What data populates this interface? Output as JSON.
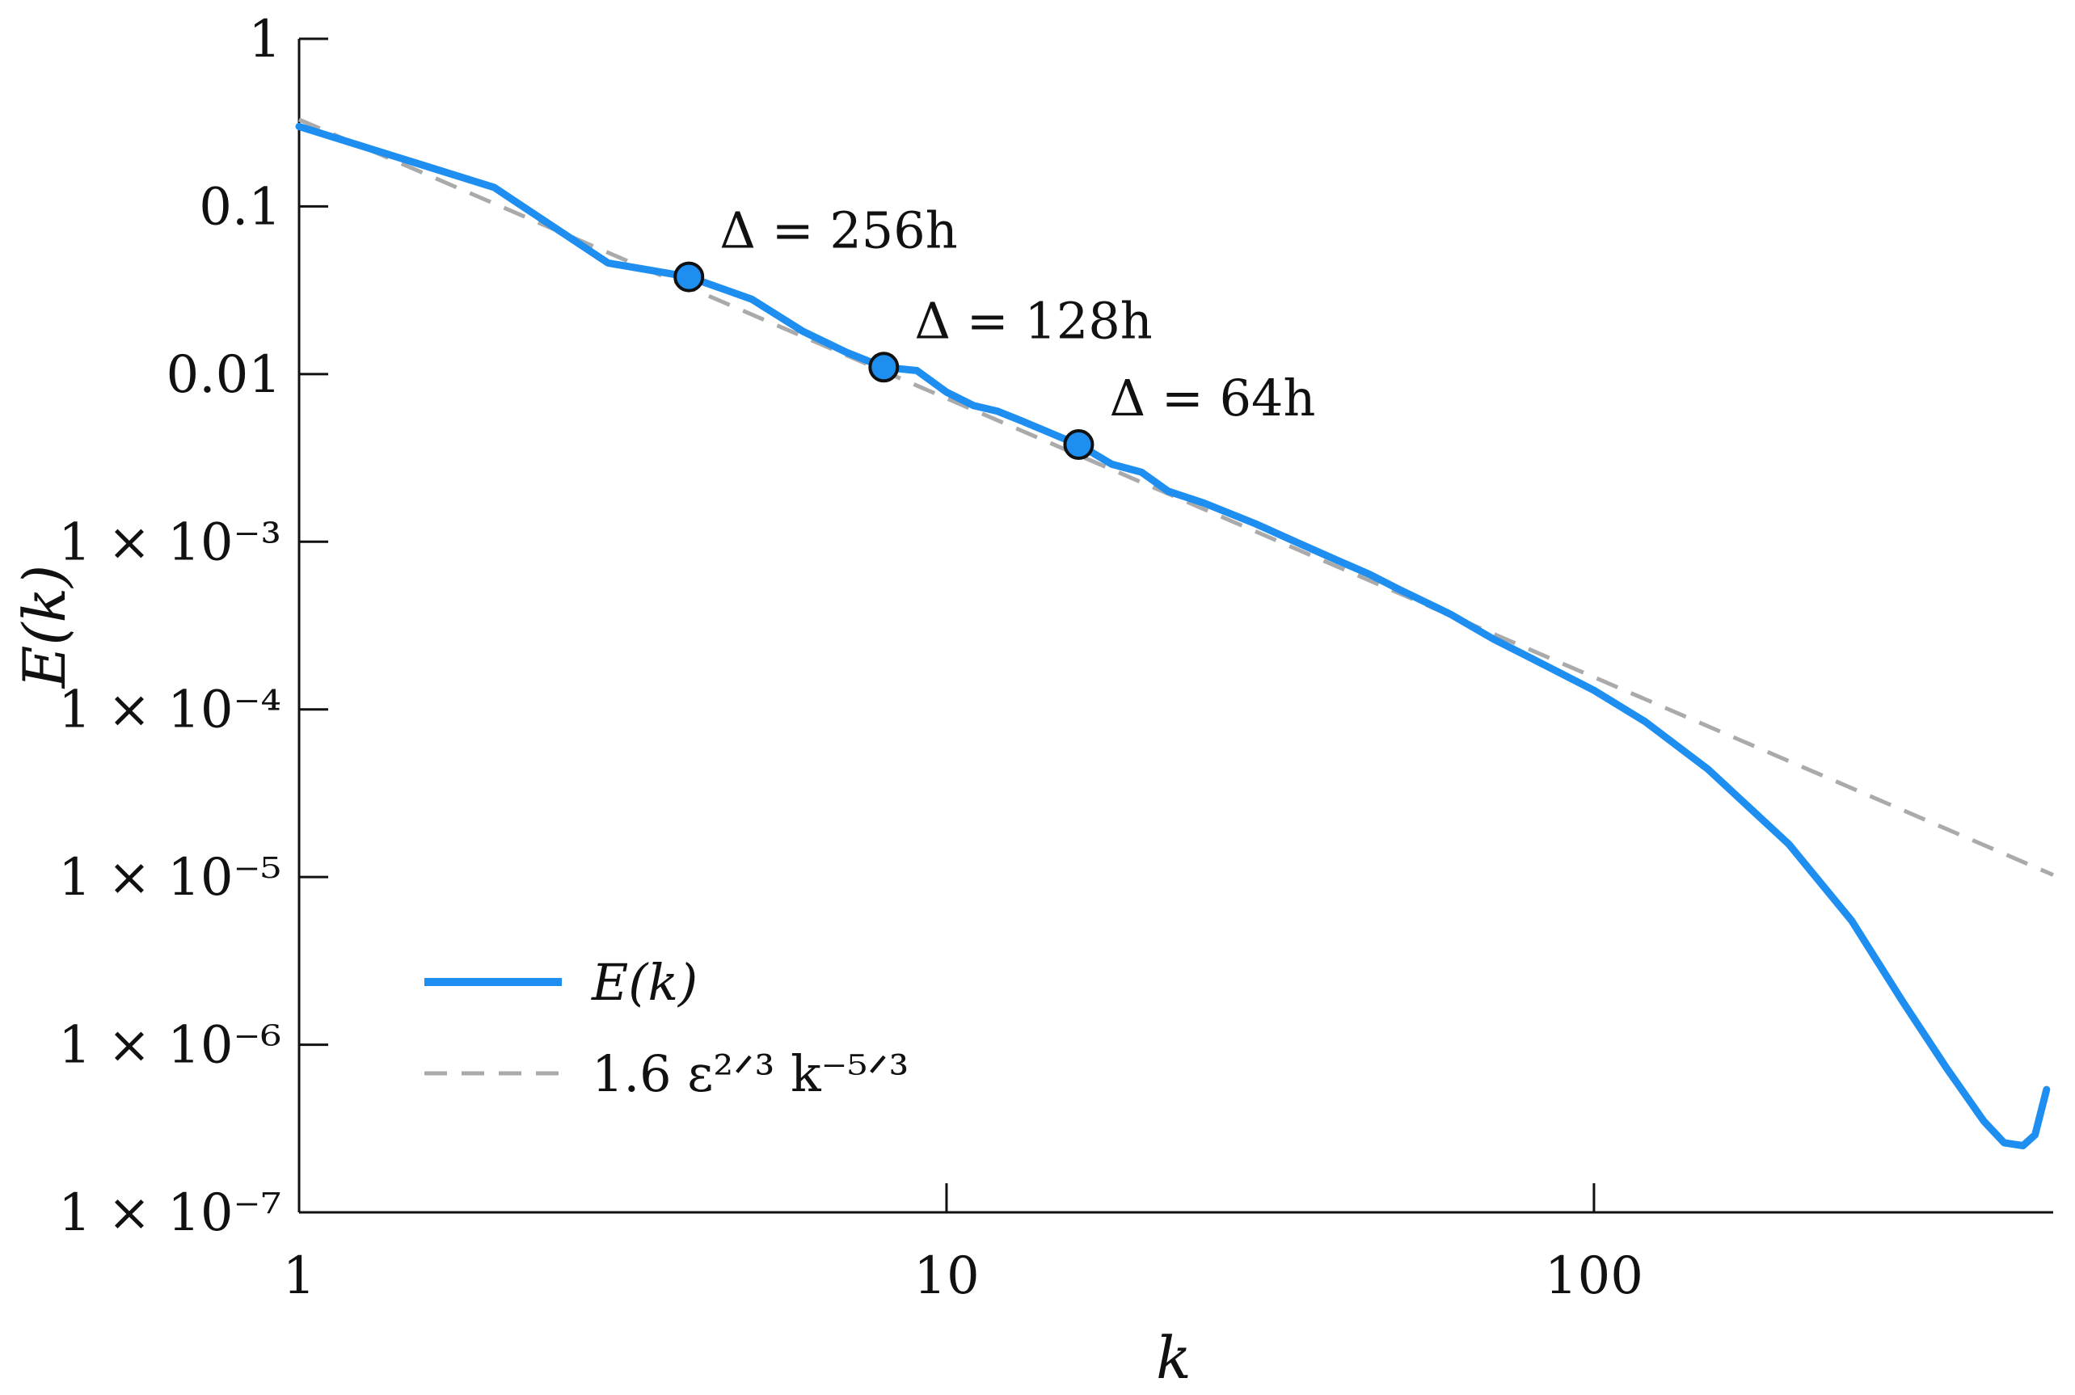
{
  "chart_data": {
    "type": "line",
    "title": "",
    "xlabel": "k",
    "ylabel": "E(k)",
    "x_scale": "log",
    "y_scale": "log",
    "xlim": [
      1,
      512
    ],
    "ylim": [
      1e-07,
      1
    ],
    "grid": false,
    "legend_position": "bottom-left",
    "x_ticks": [
      {
        "value": 1,
        "label": "1"
      },
      {
        "value": 10,
        "label": "10"
      },
      {
        "value": 100,
        "label": "100"
      }
    ],
    "y_ticks": [
      {
        "value": 1,
        "label": "1"
      },
      {
        "value": 0.1,
        "label": "0.1"
      },
      {
        "value": 0.01,
        "label": "0.01"
      },
      {
        "value": 0.001,
        "label": "1 × 10⁻³"
      },
      {
        "value": 0.0001,
        "label": "1 × 10⁻⁴"
      },
      {
        "value": 1e-05,
        "label": "1 × 10⁻⁵"
      },
      {
        "value": 1e-06,
        "label": "1 × 10⁻⁶"
      },
      {
        "value": 1e-07,
        "label": "1 × 10⁻⁷"
      }
    ],
    "series": [
      {
        "name": "E(k)",
        "color": "#1e8ff0",
        "style": "solid",
        "x": [
          1,
          2,
          3,
          4,
          5,
          6,
          7,
          8,
          9,
          10,
          11,
          12,
          13,
          14,
          15,
          16,
          18,
          20,
          22,
          25,
          30,
          35,
          40,
          45,
          50,
          60,
          70,
          80,
          90,
          100,
          120,
          150,
          200,
          250,
          300,
          350,
          400,
          430,
          460,
          480,
          500
        ],
        "y": [
          0.3,
          0.13,
          0.046,
          0.038,
          0.028,
          0.018,
          0.0135,
          0.011,
          0.0105,
          0.0078,
          0.0065,
          0.006,
          0.0053,
          0.0047,
          0.0042,
          0.0038,
          0.0029,
          0.0026,
          0.002,
          0.0017,
          0.00128,
          0.00098,
          0.00078,
          0.00064,
          0.00052,
          0.00037,
          0.000262,
          0.000202,
          0.00016,
          0.00013,
          8.45e-05,
          4.4e-05,
          1.57e-05,
          5.5e-06,
          1.8e-06,
          7.3e-07,
          3.5e-07,
          2.6e-07,
          2.5e-07,
          2.9e-07,
          5.4e-07
        ]
      },
      {
        "name": "1.6 ε²ᐟ³ k⁻⁵ᐟ³",
        "color": "#aaaaaa",
        "style": "dashed",
        "x": [
          1,
          512
        ],
        "y": [
          0.33,
          1.03e-05
        ]
      }
    ],
    "markers": [
      {
        "x": 4,
        "y": 0.038,
        "label": "Δ = 256h"
      },
      {
        "x": 8,
        "y": 0.011,
        "label": "Δ = 128h"
      },
      {
        "x": 16,
        "y": 0.0038,
        "label": "Δ = 64h"
      }
    ],
    "legend": [
      {
        "label": "E(k)",
        "style": "solid",
        "color": "#1e8ff0"
      },
      {
        "label": "1.6 ε²ᐟ³ k⁻⁵ᐟ³",
        "style": "dashed",
        "color": "#aaaaaa"
      }
    ]
  }
}
